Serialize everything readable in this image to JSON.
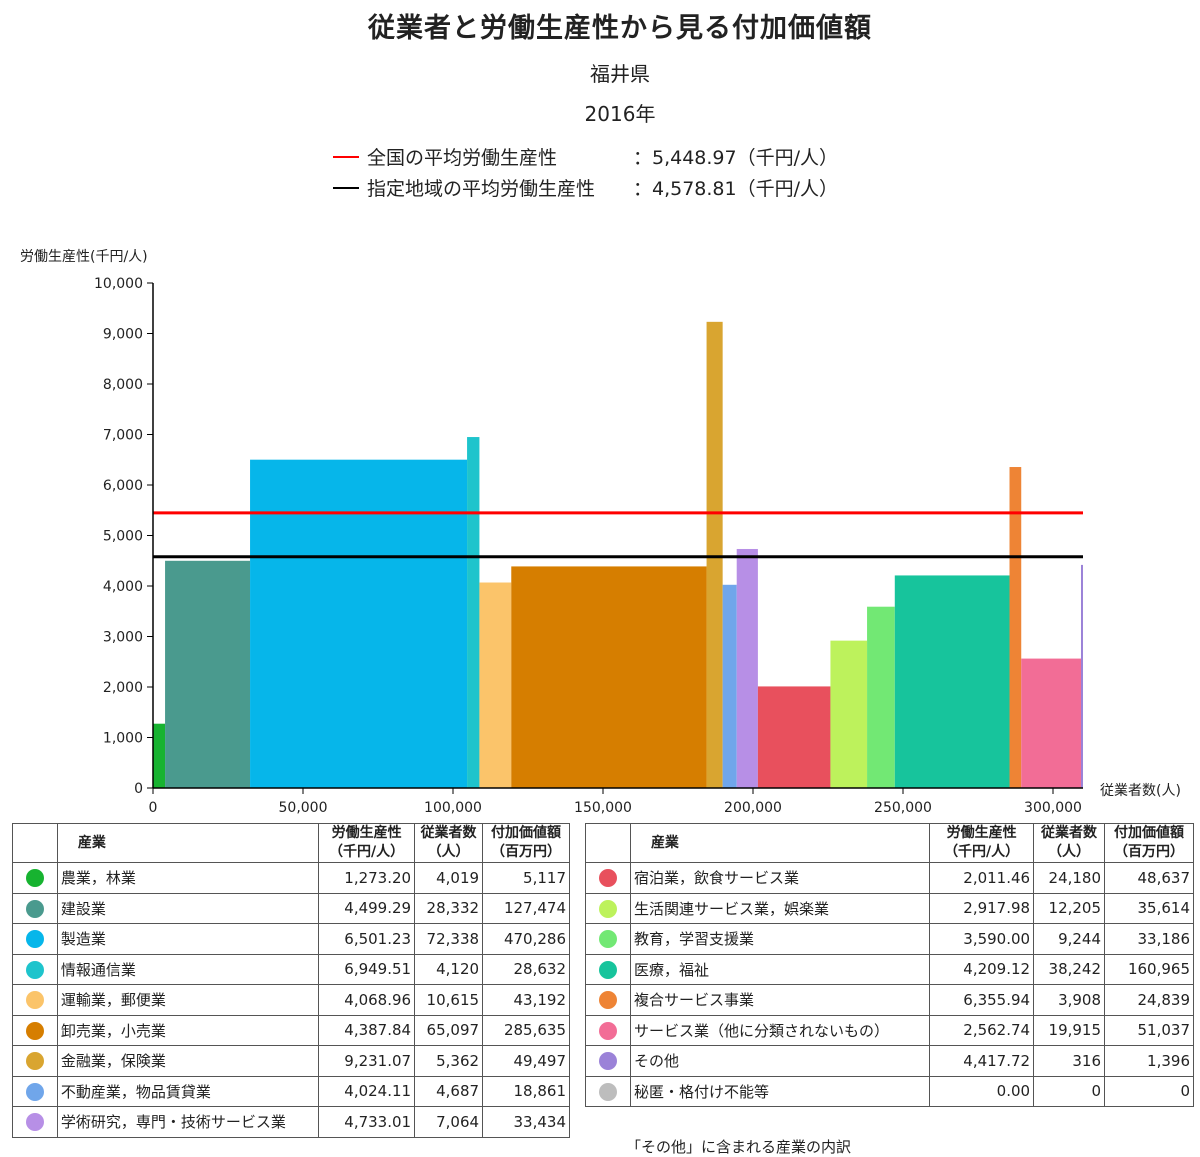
{
  "header": {
    "title": "従業者と労働生産性から見る付加価値額",
    "region": "福井県",
    "year": "2016年"
  },
  "averages": [
    {
      "label": "全国の平均労働生産性",
      "value": "：5,448.97（千円/人）",
      "y": 5448.97,
      "color": "#ff0000"
    },
    {
      "label": "指定地域の平均労働生産性",
      "value": "：4,578.81（千円/人）",
      "y": 4578.81,
      "color": "#000000"
    }
  ],
  "chart_data": {
    "type": "bar",
    "subtype": "variable-width (marimekko)",
    "ylabel": "労働生産性(千円/人)",
    "xlabel": "従業者数(人)",
    "ylim": [
      0,
      10000
    ],
    "xlim": [
      0,
      310000
    ],
    "yticks": [
      0,
      1000,
      2000,
      3000,
      4000,
      5000,
      6000,
      7000,
      8000,
      9000,
      10000
    ],
    "xticks": [
      0,
      50000,
      100000,
      150000,
      200000,
      250000,
      300000
    ],
    "series": [
      {
        "name": "農業，林業",
        "productivity": 1273.2,
        "workers": 4019,
        "color": "#17b330"
      },
      {
        "name": "建設業",
        "productivity": 4499.29,
        "workers": 28332,
        "color": "#4a9a8e"
      },
      {
        "name": "製造業",
        "productivity": 6501.23,
        "workers": 72338,
        "color": "#06b6ea"
      },
      {
        "name": "情報通信業",
        "productivity": 6949.51,
        "workers": 4120,
        "color": "#1ec4cc"
      },
      {
        "name": "運輸業，郵便業",
        "productivity": 4068.96,
        "workers": 10615,
        "color": "#fbc46a"
      },
      {
        "name": "卸売業，小売業",
        "productivity": 4387.84,
        "workers": 65097,
        "color": "#d67e00"
      },
      {
        "name": "金融業，保険業",
        "productivity": 9231.07,
        "workers": 5362,
        "color": "#d9a530"
      },
      {
        "name": "不動産業，物品賃貸業",
        "productivity": 4024.11,
        "workers": 4687,
        "color": "#70a6ea"
      },
      {
        "name": "学術研究，専門・技術サービス業",
        "productivity": 4733.01,
        "workers": 7064,
        "color": "#b78fe6"
      },
      {
        "name": "宿泊業，飲食サービス業",
        "productivity": 2011.46,
        "workers": 24180,
        "color": "#e8505d"
      },
      {
        "name": "生活関連サービス業，娯楽業",
        "productivity": 2917.98,
        "workers": 12205,
        "color": "#bdf25c"
      },
      {
        "name": "教育，学習支援業",
        "productivity": 3590.0,
        "workers": 9244,
        "color": "#72e874"
      },
      {
        "name": "医療，福祉",
        "productivity": 4209.12,
        "workers": 38242,
        "color": "#17c49c"
      },
      {
        "name": "複合サービス事業",
        "productivity": 6355.94,
        "workers": 3908,
        "color": "#ee8435"
      },
      {
        "name": "サービス業（他に分類されないもの）",
        "productivity": 2562.74,
        "workers": 19915,
        "color": "#f26d96"
      },
      {
        "name": "その他",
        "productivity": 4417.72,
        "workers": 316,
        "color": "#9b82d8"
      },
      {
        "name": "秘匿・格付け不能等",
        "productivity": 0.0,
        "workers": 0,
        "color": "#bdbdbd"
      }
    ]
  },
  "table_headers": {
    "industry": "産業",
    "productivity_l1": "労働生産性",
    "productivity_l2": "（千円/人）",
    "workers_l1": "従業者数",
    "workers_l2": "（人）",
    "value_l1": "付加価値額",
    "value_l2": "（百万円）"
  },
  "table_left": [
    {
      "name": "農業，林業",
      "productivity": "1,273.20",
      "workers": "4,019",
      "value": "5,117",
      "color": "#17b330"
    },
    {
      "name": "建設業",
      "productivity": "4,499.29",
      "workers": "28,332",
      "value": "127,474",
      "color": "#4a9a8e"
    },
    {
      "name": "製造業",
      "productivity": "6,501.23",
      "workers": "72,338",
      "value": "470,286",
      "color": "#06b6ea"
    },
    {
      "name": "情報通信業",
      "productivity": "6,949.51",
      "workers": "4,120",
      "value": "28,632",
      "color": "#1ec4cc"
    },
    {
      "name": "運輸業，郵便業",
      "productivity": "4,068.96",
      "workers": "10,615",
      "value": "43,192",
      "color": "#fbc46a"
    },
    {
      "name": "卸売業，小売業",
      "productivity": "4,387.84",
      "workers": "65,097",
      "value": "285,635",
      "color": "#d67e00"
    },
    {
      "name": "金融業，保険業",
      "productivity": "9,231.07",
      "workers": "5,362",
      "value": "49,497",
      "color": "#d9a530"
    },
    {
      "name": "不動産業，物品賃貸業",
      "productivity": "4,024.11",
      "workers": "4,687",
      "value": "18,861",
      "color": "#70a6ea"
    },
    {
      "name": "学術研究，専門・技術サービス業",
      "productivity": "4,733.01",
      "workers": "7,064",
      "value": "33,434",
      "color": "#b78fe6"
    }
  ],
  "table_right": [
    {
      "name": "宿泊業，飲食サービス業",
      "productivity": "2,011.46",
      "workers": "24,180",
      "value": "48,637",
      "color": "#e8505d"
    },
    {
      "name": "生活関連サービス業，娯楽業",
      "productivity": "2,917.98",
      "workers": "12,205",
      "value": "35,614",
      "color": "#bdf25c"
    },
    {
      "name": "教育，学習支援業",
      "productivity": "3,590.00",
      "workers": "9,244",
      "value": "33,186",
      "color": "#72e874"
    },
    {
      "name": "医療，福祉",
      "productivity": "4,209.12",
      "workers": "38,242",
      "value": "160,965",
      "color": "#17c49c"
    },
    {
      "name": "複合サービス事業",
      "productivity": "6,355.94",
      "workers": "3,908",
      "value": "24,839",
      "color": "#ee8435"
    },
    {
      "name": "サービス業（他に分類されないもの）",
      "productivity": "2,562.74",
      "workers": "19,915",
      "value": "51,037",
      "color": "#f26d96"
    },
    {
      "name": "その他",
      "productivity": "4,417.72",
      "workers": "316",
      "value": "1,396",
      "color": "#9b82d8"
    },
    {
      "name": "秘匿・格付け不能等",
      "productivity": "0.00",
      "workers": "0",
      "value": "0",
      "color": "#bdbdbd"
    }
  ],
  "note": "「その他」に含まれる産業の内訳"
}
